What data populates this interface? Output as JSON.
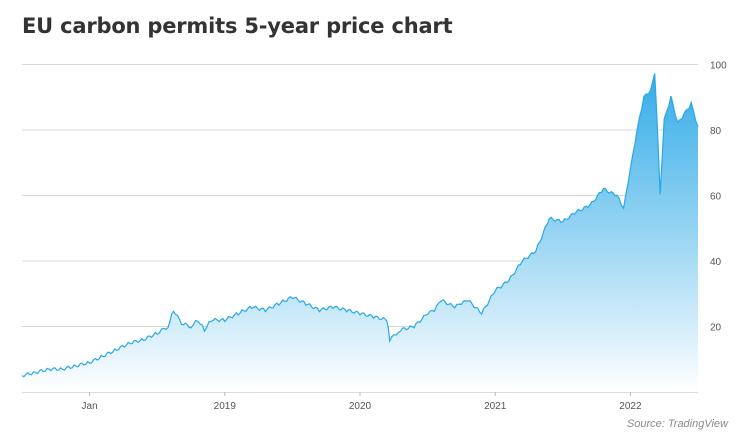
{
  "title": "EU carbon permits 5-year price chart",
  "source": "Source: TradingView",
  "colors": {
    "line": "#2aa8e6",
    "fill_top": "#2aa8e6",
    "fill_bottom": "#ffffff",
    "grid": "#d8d8d8",
    "axis_text": "#555555"
  },
  "chart_data": {
    "type": "area",
    "title": "EU carbon permits 5-year price chart",
    "xlabel": "",
    "ylabel": "",
    "ylim": [
      0,
      100
    ],
    "y_ticks": [
      20,
      40,
      60,
      80,
      100
    ],
    "x_ticks": [
      {
        "label": "Jan",
        "t": 2018.0
      },
      {
        "label": "2019",
        "t": 2019.0
      },
      {
        "label": "2020",
        "t": 2020.0
      },
      {
        "label": "2021",
        "t": 2021.0
      },
      {
        "label": "2022",
        "t": 2022.0
      }
    ],
    "grid": true,
    "y_axis_side": "right",
    "series": [
      {
        "x": [
          2017.5,
          2017.6,
          2017.7,
          2017.8,
          2017.9,
          2018.0,
          2018.1,
          2018.2,
          2018.3,
          2018.4,
          2018.5,
          2018.58,
          2018.62,
          2018.68,
          2018.75,
          2018.8,
          2018.85,
          2018.9,
          2019.0,
          2019.1,
          2019.2,
          2019.3,
          2019.4,
          2019.5,
          2019.6,
          2019.7,
          2019.8,
          2019.9,
          2020.0,
          2020.1,
          2020.2,
          2020.22,
          2020.3,
          2020.4,
          2020.5,
          2020.55,
          2020.6,
          2020.7,
          2020.75,
          2020.8,
          2020.9,
          2021.0,
          2021.1,
          2021.2,
          2021.3,
          2021.4,
          2021.5,
          2021.6,
          2021.7,
          2021.8,
          2021.9,
          2021.95,
          2022.0,
          2022.05,
          2022.1,
          2022.15,
          2022.18,
          2022.2,
          2022.22,
          2022.25,
          2022.3,
          2022.35,
          2022.4,
          2022.45,
          2022.5
        ],
        "y": [
          5,
          6,
          7,
          7,
          8,
          9,
          11,
          13,
          15,
          16,
          18,
          20,
          25,
          21,
          20,
          22,
          19,
          22,
          22,
          24,
          26,
          25,
          27,
          29,
          27,
          25,
          26,
          25,
          24,
          23,
          22,
          16,
          19,
          20,
          24,
          25,
          28,
          26,
          27,
          28,
          24,
          31,
          34,
          40,
          43,
          53,
          52,
          55,
          57,
          62,
          60,
          56,
          68,
          80,
          90,
          92,
          97,
          80,
          60,
          83,
          90,
          82,
          85,
          88,
          81
        ]
      }
    ]
  }
}
